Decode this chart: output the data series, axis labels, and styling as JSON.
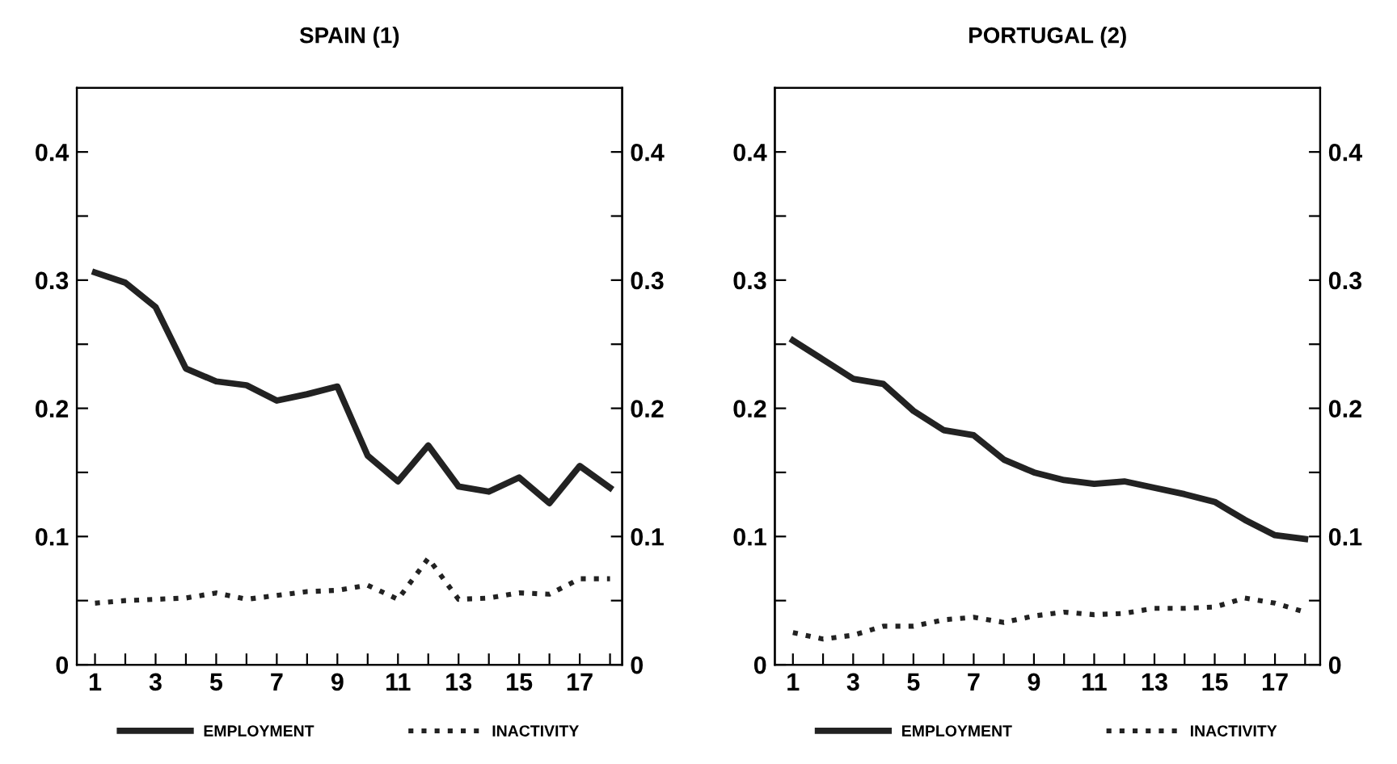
{
  "chart_data": [
    {
      "type": "line",
      "title": "SPAIN (1)",
      "x": [
        1,
        2,
        3,
        4,
        5,
        6,
        7,
        8,
        9,
        10,
        11,
        12,
        13,
        14,
        15,
        16,
        17,
        18
      ],
      "xlim": [
        0.4,
        18.4
      ],
      "xticks": [
        1,
        {
          "value": 2,
          "label": null
        },
        3,
        {
          "value": 4,
          "label": null
        },
        5,
        {
          "value": 6,
          "label": null
        },
        7,
        {
          "value": 8,
          "label": null
        },
        9,
        {
          "value": 10,
          "label": null
        },
        11,
        {
          "value": 12,
          "label": null
        },
        13,
        {
          "value": 14,
          "label": null
        },
        15,
        {
          "value": 16,
          "label": null
        },
        17,
        {
          "value": 18,
          "label": null
        }
      ],
      "ylim": [
        0,
        0.45
      ],
      "yticks": [
        0,
        {
          "value": 0.05,
          "label": null
        },
        0.1,
        {
          "value": 0.15,
          "label": null
        },
        0.2,
        {
          "value": 0.25,
          "label": null
        },
        0.3,
        {
          "value": 0.35,
          "label": null
        },
        0.4
      ],
      "y2lim": [
        0,
        0.45
      ],
      "y2ticks": [
        0,
        {
          "value": 0.05,
          "label": null
        },
        0.1,
        {
          "value": 0.15,
          "label": null
        },
        0.2,
        {
          "value": 0.25,
          "label": null
        },
        0.3,
        {
          "value": 0.35,
          "label": null
        },
        0.4
      ],
      "grid": false,
      "legend": "bottom",
      "marker": "none",
      "series": [
        {
          "name": "EMPLOYMENT",
          "color": "#222222",
          "line_style": "solid",
          "values": [
            0.306,
            0.298,
            0.279,
            0.231,
            0.221,
            0.218,
            0.206,
            0.211,
            0.217,
            0.163,
            0.143,
            0.171,
            0.139,
            0.135,
            0.146,
            0.126,
            0.155,
            0.138
          ]
        },
        {
          "name": "INACTIVITY",
          "color": "#222222",
          "line_style": "dotted",
          "values": [
            0.048,
            0.05,
            0.051,
            0.052,
            0.056,
            0.051,
            0.054,
            0.057,
            0.058,
            0.062,
            0.051,
            0.083,
            0.051,
            0.052,
            0.056,
            0.055,
            0.067,
            0.067
          ]
        }
      ]
    },
    {
      "type": "line",
      "title": "PORTUGAL (2)",
      "x": [
        1,
        2,
        3,
        4,
        5,
        6,
        7,
        8,
        9,
        10,
        11,
        12,
        13,
        14,
        15,
        16,
        17,
        18
      ],
      "xlim": [
        0.4,
        18.5
      ],
      "xticks": [
        1,
        {
          "value": 2,
          "label": null
        },
        3,
        {
          "value": 4,
          "label": null
        },
        5,
        {
          "value": 6,
          "label": null
        },
        7,
        {
          "value": 8,
          "label": null
        },
        9,
        {
          "value": 10,
          "label": null
        },
        11,
        {
          "value": 12,
          "label": null
        },
        13,
        {
          "value": 14,
          "label": null
        },
        15,
        {
          "value": 16,
          "label": null
        },
        17,
        {
          "value": 18,
          "label": null
        }
      ],
      "ylim": [
        0,
        0.45
      ],
      "yticks": [
        0,
        {
          "value": 0.05,
          "label": null
        },
        0.1,
        {
          "value": 0.15,
          "label": null
        },
        0.2,
        {
          "value": 0.25,
          "label": null
        },
        0.3,
        {
          "value": 0.35,
          "label": null
        },
        0.4
      ],
      "y2lim": [
        0,
        0.45
      ],
      "y2ticks": [
        0,
        {
          "value": 0.05,
          "label": null
        },
        0.1,
        {
          "value": 0.15,
          "label": null
        },
        0.2,
        {
          "value": 0.25,
          "label": null
        },
        0.3,
        {
          "value": 0.35,
          "label": null
        },
        0.4
      ],
      "grid": false,
      "legend": "bottom",
      "marker": "none",
      "series": [
        {
          "name": "EMPLOYMENT",
          "color": "#222222",
          "line_style": "solid",
          "values": [
            0.253,
            0.238,
            0.223,
            0.219,
            0.198,
            0.183,
            0.179,
            0.16,
            0.15,
            0.144,
            0.141,
            0.143,
            0.138,
            0.133,
            0.127,
            0.113,
            0.101,
            0.098
          ]
        },
        {
          "name": "INACTIVITY",
          "color": "#222222",
          "line_style": "dotted",
          "values": [
            0.025,
            0.02,
            0.023,
            0.03,
            0.03,
            0.035,
            0.037,
            0.033,
            0.038,
            0.041,
            0.039,
            0.04,
            0.044,
            0.044,
            0.045,
            0.052,
            0.048,
            0.041
          ]
        }
      ]
    }
  ]
}
